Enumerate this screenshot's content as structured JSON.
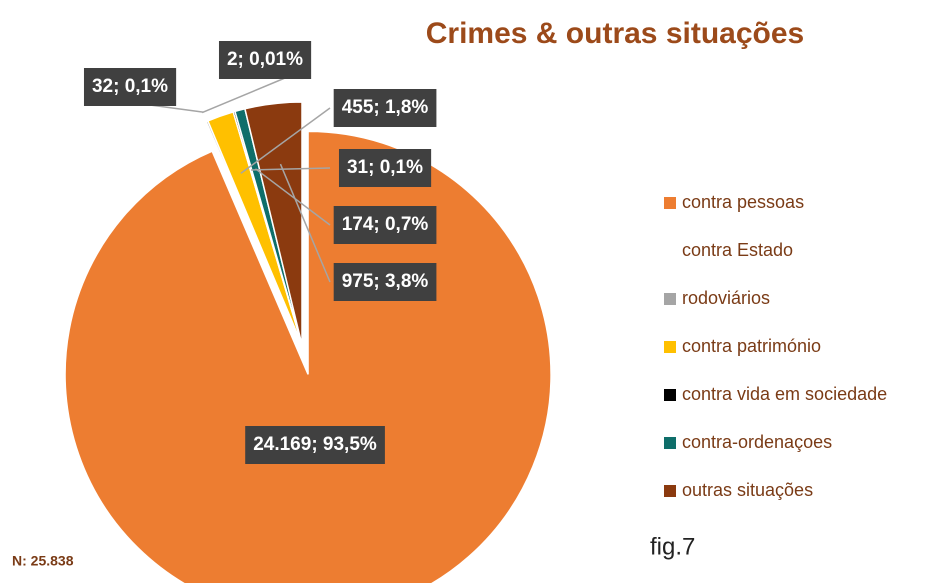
{
  "chart_data": {
    "type": "pie",
    "title": "Crimes & outras situações",
    "categories": [
      "contra pessoas",
      "contra Estado",
      "rodoviários",
      "contra património",
      "contra vida em sociedade",
      "contra-ordenaçoes",
      "outras situações"
    ],
    "values": [
      24169,
      2,
      32,
      455,
      31,
      174,
      975
    ],
    "value_labels": [
      "24.169; 93,5%",
      "2; 0,01%",
      "32; 0,1%",
      "455; 1,8%",
      "31; 0,1%",
      "174; 0,7%",
      "975; 3,8%"
    ],
    "colors": [
      "#ed7d31",
      "#ffffff",
      "#a5a5a5",
      "#ffc000",
      "#000000",
      "#0e6e6a",
      "#8b3a0f"
    ],
    "annotations": [
      "N: 25.838",
      "fig.7"
    ]
  }
}
